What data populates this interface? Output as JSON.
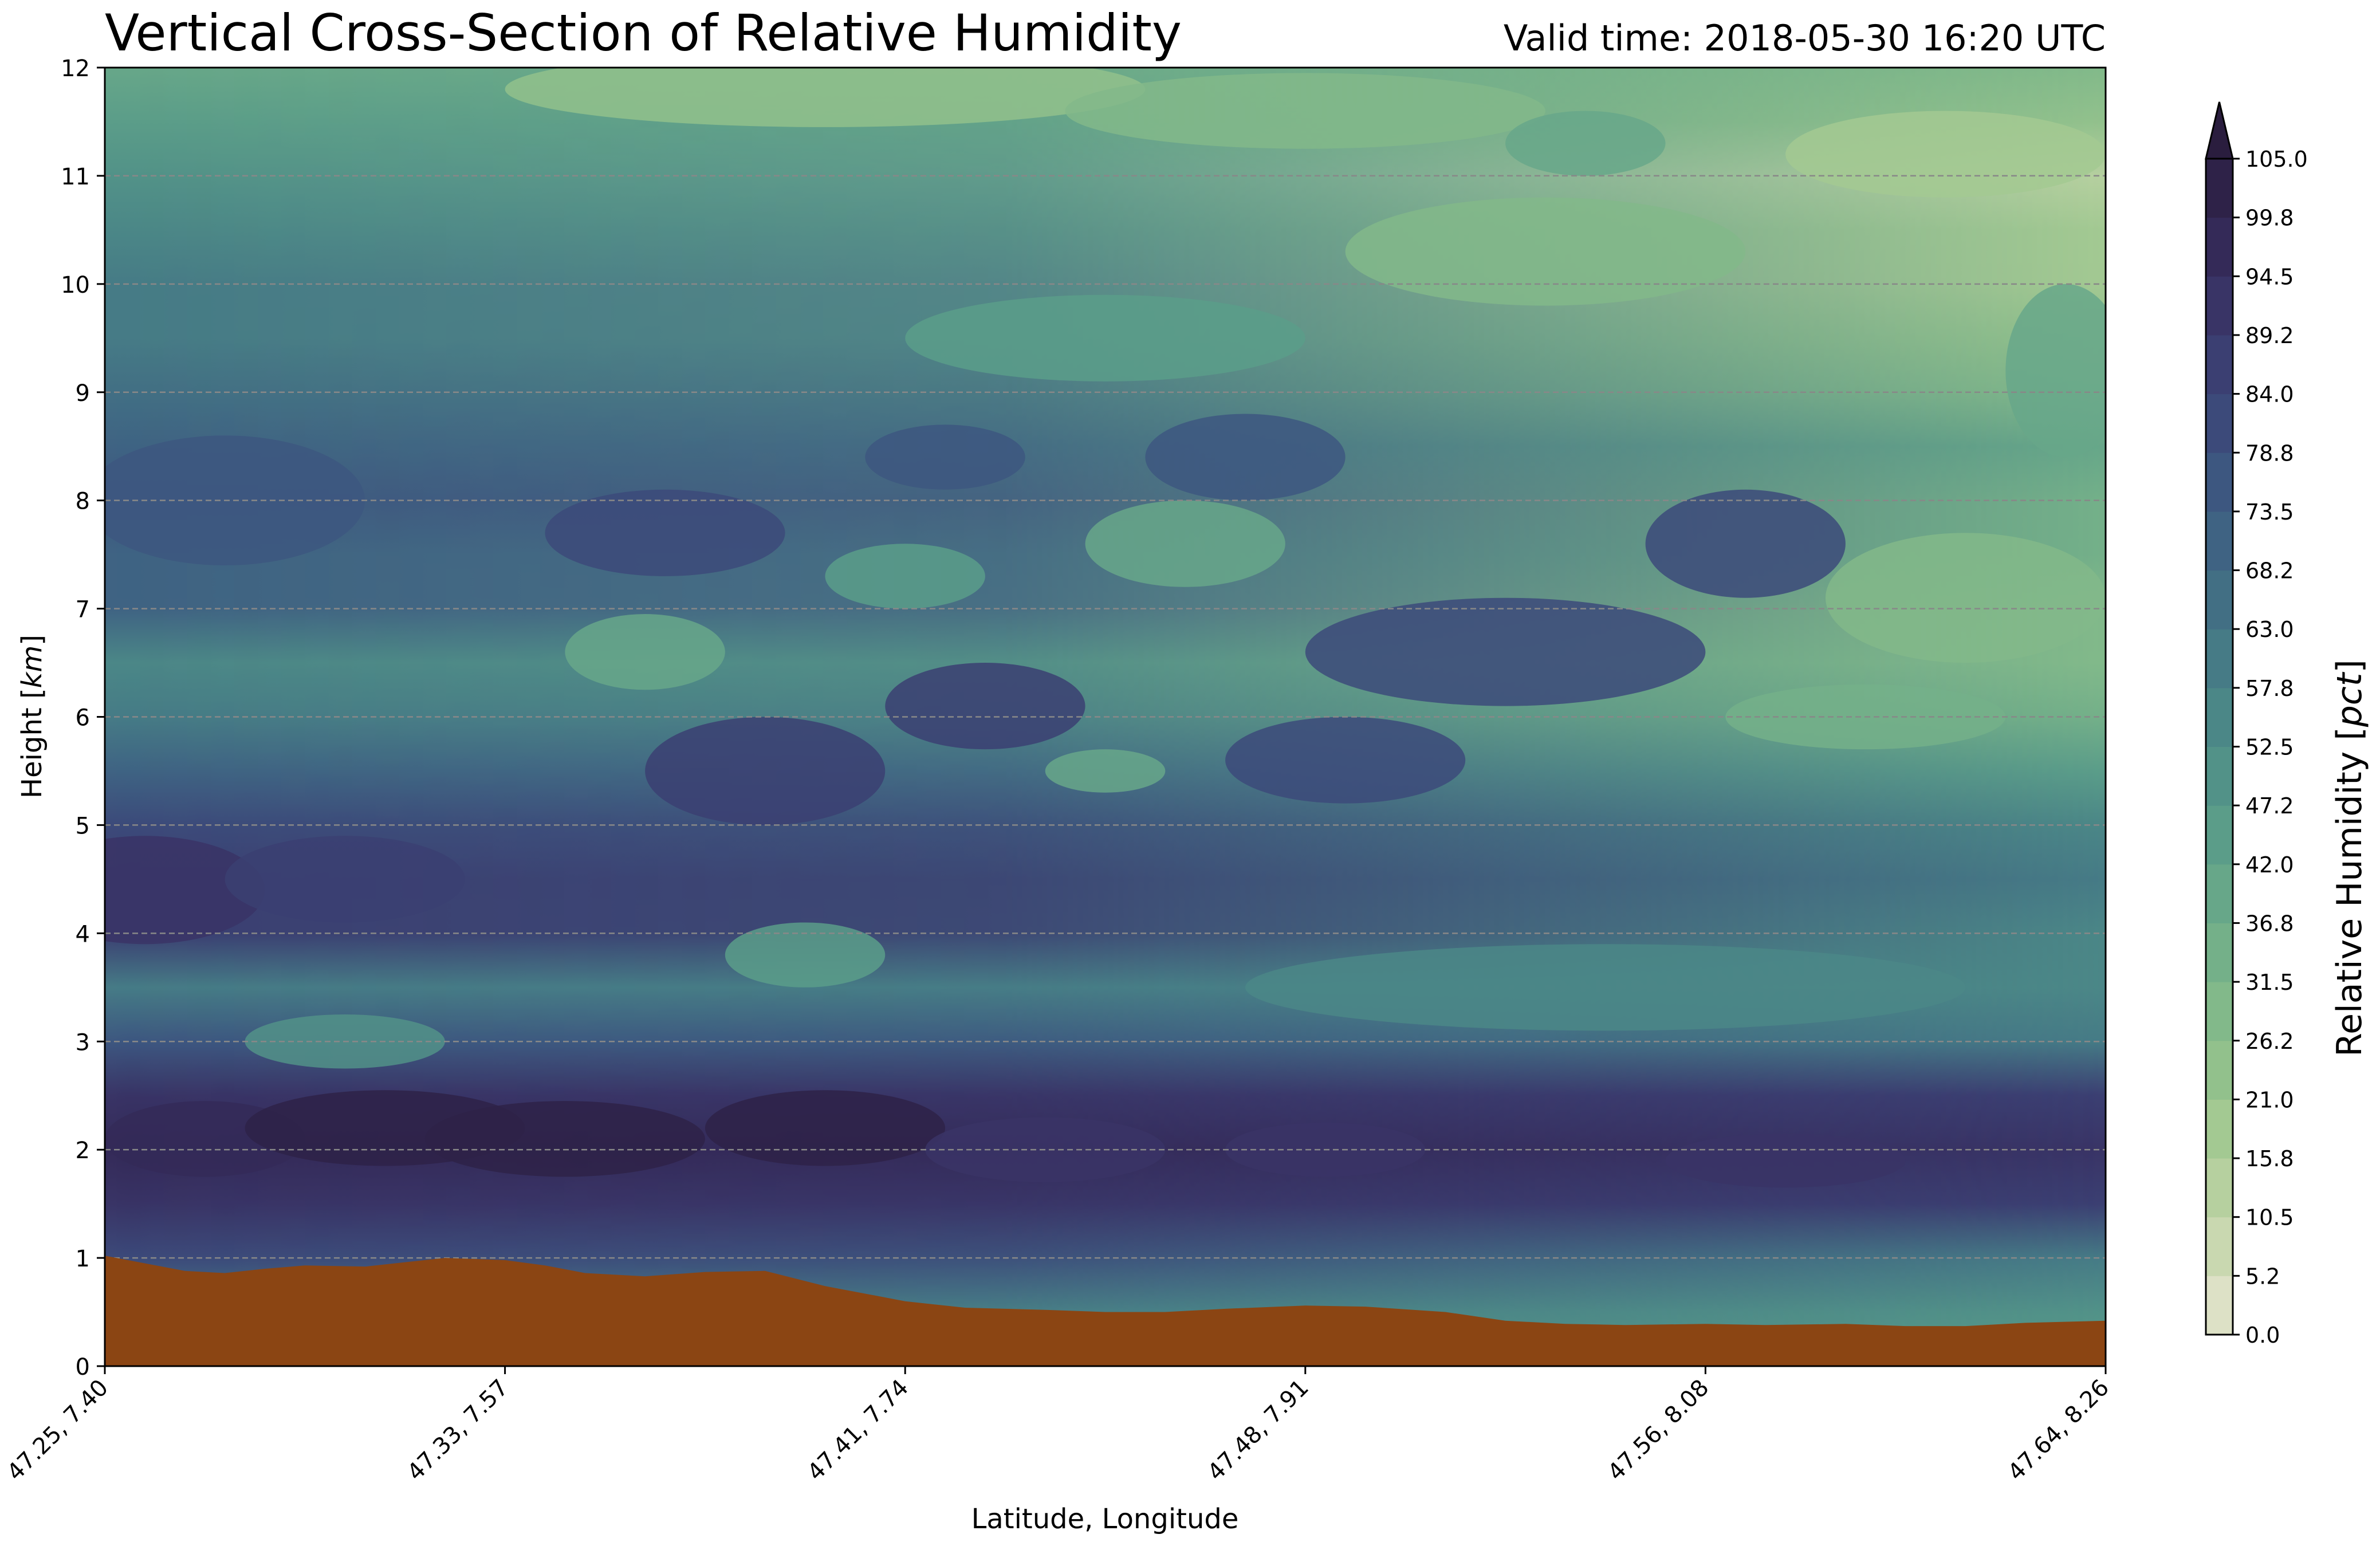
{
  "chart_data": {
    "type": "heatmap",
    "subtype": "filled-contour vertical cross-section",
    "title": "Vertical Cross-Section of Relative Humidity",
    "title_right": "Valid time: 2018-05-30 16:20 UTC",
    "xlabel": "Latitude, Longitude",
    "ylabel": "Height [km]",
    "ylim": [
      0,
      12
    ],
    "y_ticks": [
      0,
      1,
      2,
      3,
      4,
      5,
      6,
      7,
      8,
      9,
      10,
      11,
      12
    ],
    "x_tick_labels": [
      "47.25, 7.40",
      "47.33, 7.57",
      "47.41, 7.74",
      "47.48, 7.91",
      "47.56, 8.08",
      "47.64, 8.26"
    ],
    "grid": "horizontal dashed at each km",
    "colorbar": {
      "label": "Relative Humidity [pct]",
      "extend": "max",
      "levels": [
        0.0,
        5.2,
        10.5,
        15.8,
        21.0,
        26.2,
        31.5,
        36.8,
        42.0,
        47.2,
        52.5,
        57.8,
        63.0,
        68.2,
        73.5,
        78.8,
        84.0,
        89.2,
        94.5,
        99.8,
        105.0
      ],
      "colors": [
        "#dde1c6",
        "#c9d8b0",
        "#b6d09f",
        "#a3c992",
        "#92c18c",
        "#82b98a",
        "#74b089",
        "#67a789",
        "#5b9d89",
        "#529288",
        "#4b8787",
        "#467b86",
        "#426f84",
        "#3f6383",
        "#3d5780",
        "#3c4a7a",
        "#3b3f72",
        "#393466",
        "#342a58",
        "#2e2248"
      ],
      "extend_color": "#2a1d3e"
    },
    "terrain": {
      "color": "#8b4513",
      "x_frac": [
        0.0,
        0.02,
        0.04,
        0.06,
        0.08,
        0.1,
        0.13,
        0.15,
        0.17,
        0.2,
        0.22,
        0.24,
        0.27,
        0.3,
        0.33,
        0.36,
        0.4,
        0.43,
        0.47,
        0.5,
        0.53,
        0.56,
        0.6,
        0.63,
        0.67,
        0.7,
        0.73,
        0.76,
        0.8,
        0.83,
        0.87,
        0.9,
        0.93,
        0.96,
        1.0
      ],
      "height_km": [
        1.02,
        0.95,
        0.88,
        0.86,
        0.9,
        0.93,
        0.92,
        0.96,
        1.0,
        0.98,
        0.93,
        0.86,
        0.83,
        0.87,
        0.88,
        0.74,
        0.6,
        0.54,
        0.52,
        0.5,
        0.5,
        0.53,
        0.56,
        0.55,
        0.5,
        0.42,
        0.39,
        0.38,
        0.39,
        0.38,
        0.39,
        0.37,
        0.37,
        0.4,
        0.42
      ]
    },
    "rh_profile": {
      "height_km": [
        0.0,
        0.5,
        1.0,
        1.5,
        2.0,
        2.5,
        3.0,
        3.5,
        4.0,
        4.5,
        5.0,
        5.5,
        6.0,
        6.5,
        7.0,
        7.5,
        8.0,
        8.5,
        9.0,
        9.5,
        10.0,
        10.5,
        11.0,
        11.5,
        12.0
      ],
      "rh_west": [
        55,
        60,
        82,
        93,
        98,
        94,
        75,
        60,
        85,
        88,
        80,
        70,
        60,
        55,
        70,
        72,
        75,
        72,
        68,
        62,
        60,
        55,
        50,
        45,
        40
      ],
      "rh_east": [
        45,
        48,
        60,
        85,
        90,
        85,
        62,
        55,
        55,
        58,
        55,
        45,
        35,
        30,
        28,
        32,
        35,
        40,
        30,
        25,
        20,
        20,
        15,
        22,
        28
      ]
    }
  }
}
